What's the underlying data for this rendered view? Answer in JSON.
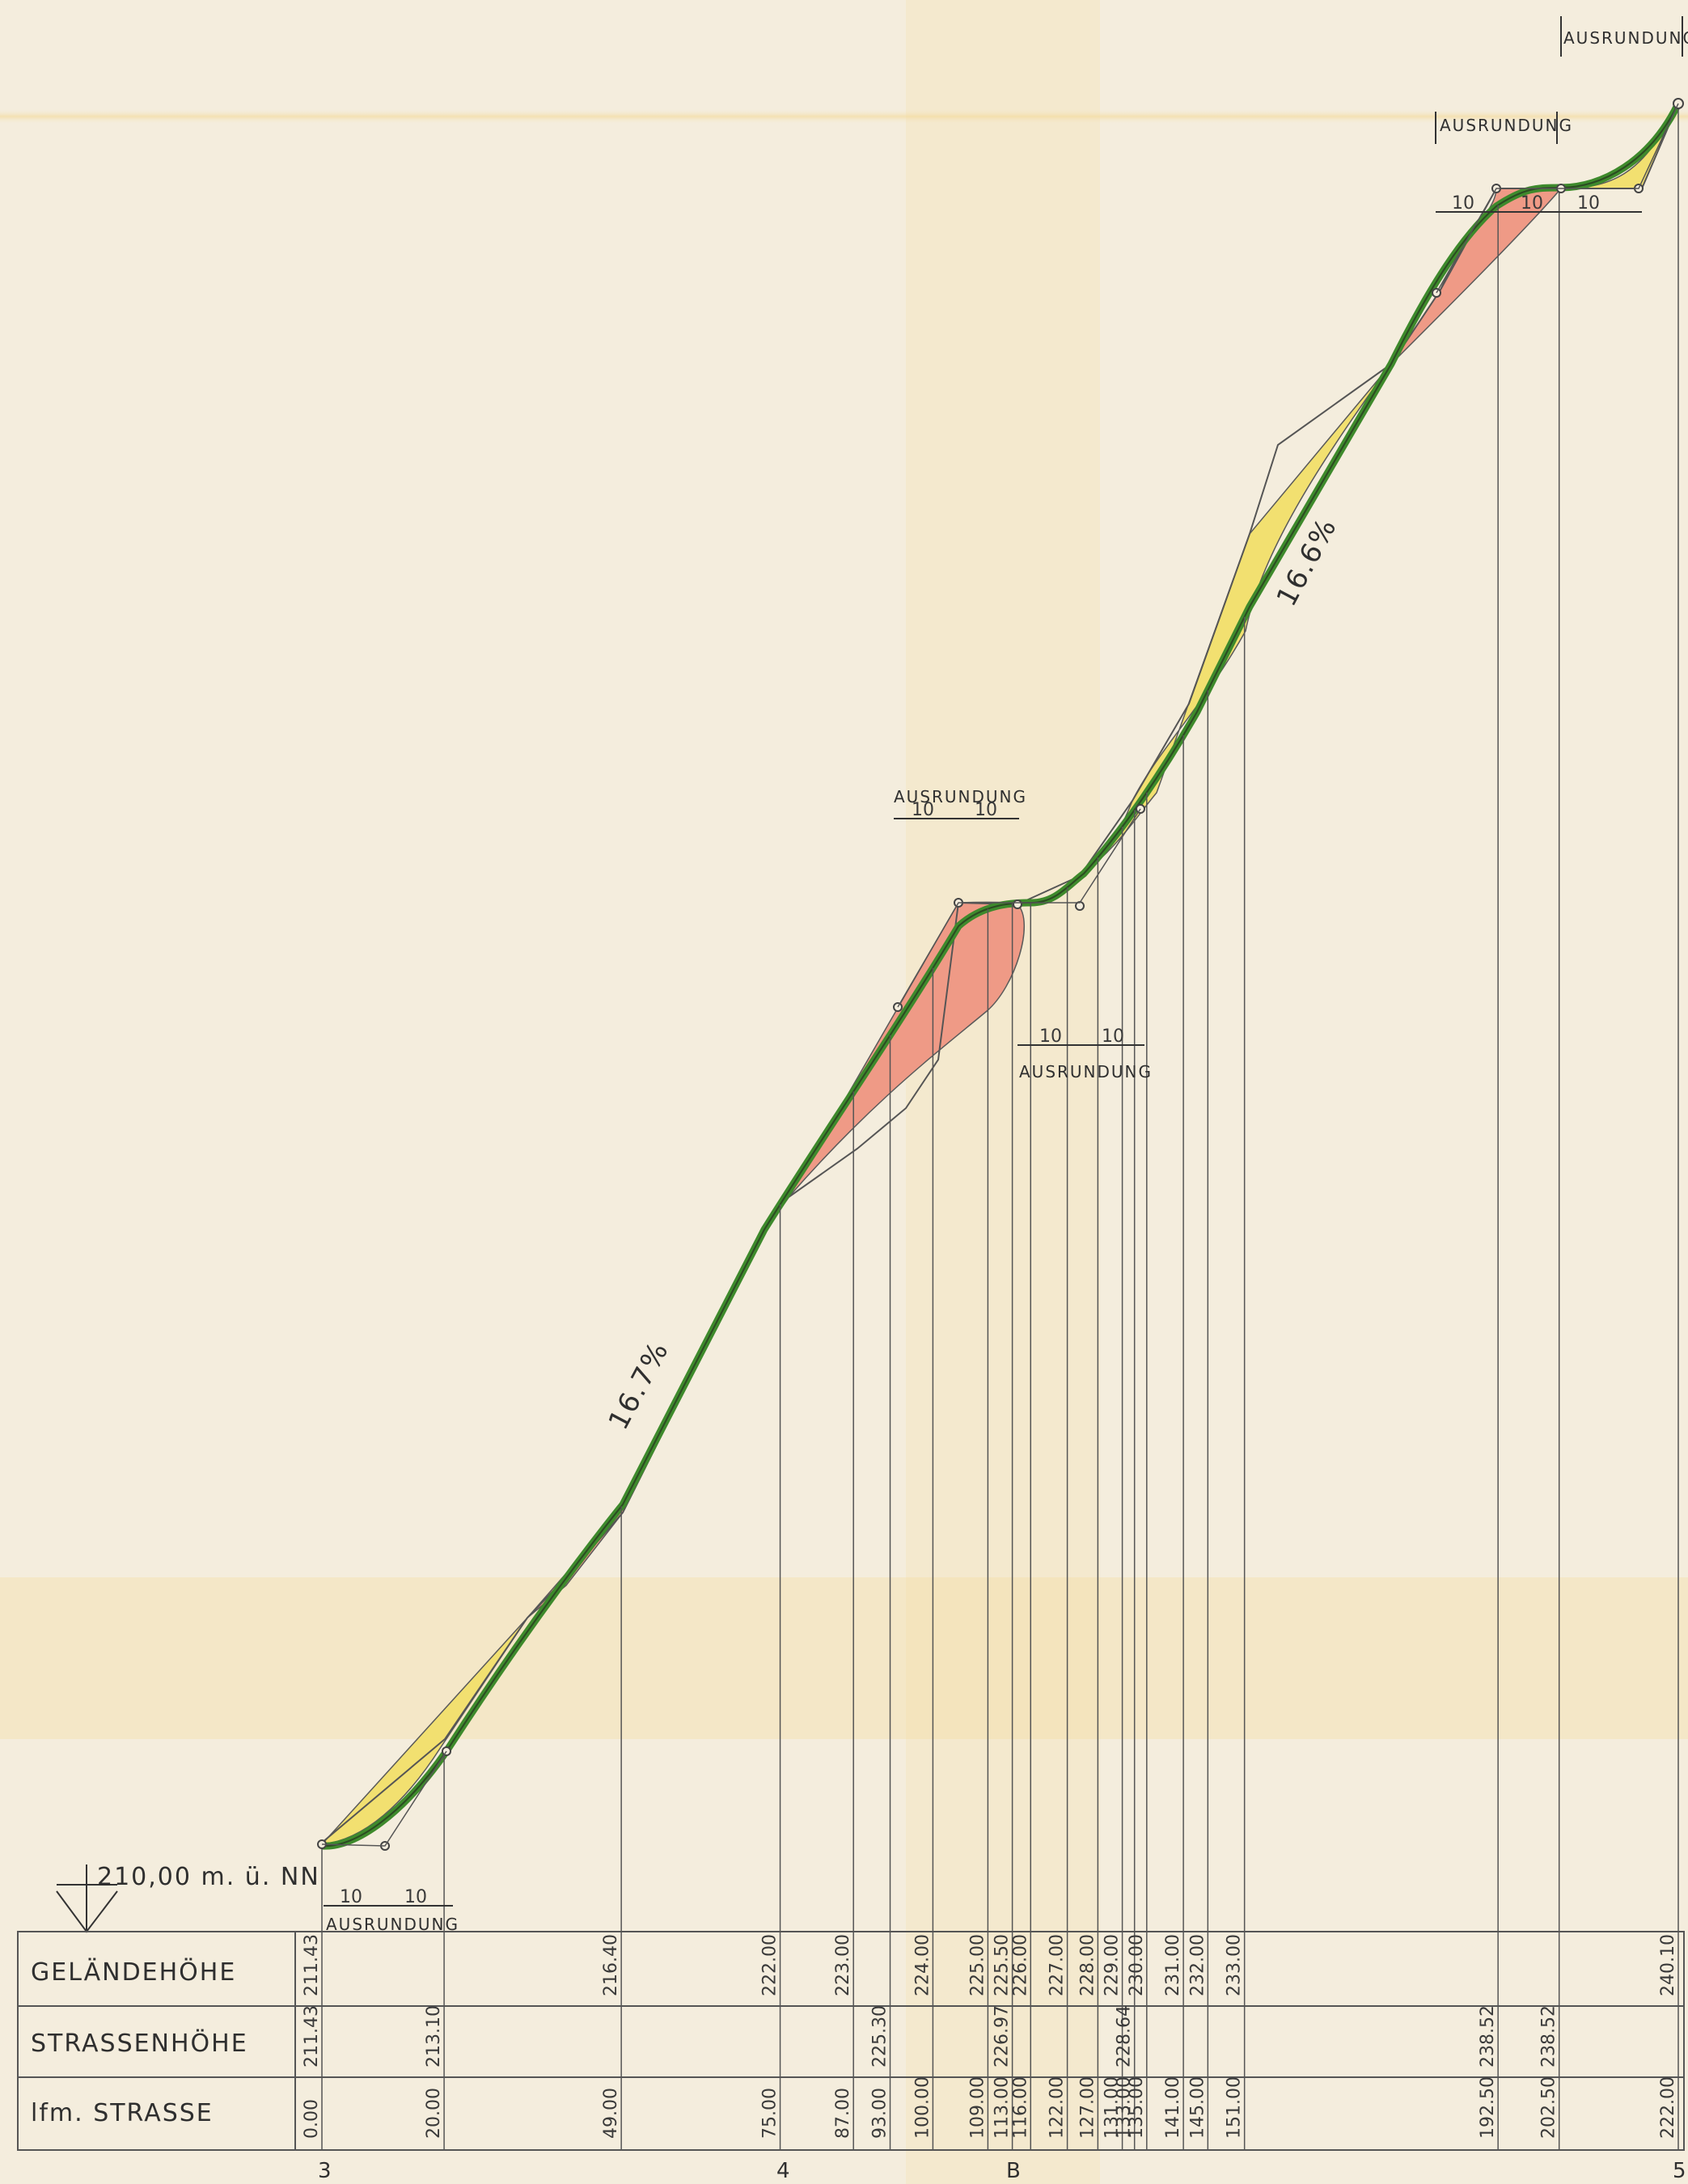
{
  "datum_label": "210,00 m. ü. NN",
  "grade_labels": [
    "16.7%",
    "16.6%"
  ],
  "ausrundung": "AUSRUNDUNG",
  "curve_dims": [
    "10",
    "10"
  ],
  "rows": {
    "gelaende": "GELÄNDEHÖHE",
    "strasse": "STRASSENHÖHE",
    "lfm": "lfm. STRASSE"
  },
  "stations": [
    {
      "lfm": "0.00",
      "terrain": "211.43",
      "road": "211.43"
    },
    {
      "lfm": "20.00",
      "terrain": "",
      "road": "213.10"
    },
    {
      "lfm": "49.00",
      "terrain": "216.40",
      "road": ""
    },
    {
      "lfm": "75.00",
      "terrain": "222.00",
      "road": ""
    },
    {
      "lfm": "87.00",
      "terrain": "223.00",
      "road": ""
    },
    {
      "lfm": "93.00",
      "terrain": "",
      "road": "225.30"
    },
    {
      "lfm": "100.00",
      "terrain": "224.00",
      "road": ""
    },
    {
      "lfm": "109.00",
      "terrain": "225.00",
      "road": ""
    },
    {
      "lfm": "113.00",
      "terrain": "225.50",
      "road": "226.97"
    },
    {
      "lfm": "116.00",
      "terrain": "226.00",
      "road": ""
    },
    {
      "lfm": "122.00",
      "terrain": "227.00",
      "road": ""
    },
    {
      "lfm": "127.00",
      "terrain": "228.00",
      "road": ""
    },
    {
      "lfm": "131.00",
      "terrain": "229.00",
      "road": ""
    },
    {
      "lfm": "133.00",
      "terrain": "",
      "road": "228.64"
    },
    {
      "lfm": "135.00",
      "terrain": "230.00",
      "road": ""
    },
    {
      "lfm": "141.00",
      "terrain": "231.00",
      "road": ""
    },
    {
      "lfm": "145.00",
      "terrain": "232.00",
      "road": ""
    },
    {
      "lfm": "151.00",
      "terrain": "233.00",
      "road": ""
    },
    {
      "lfm": "192.50",
      "terrain": "",
      "road": "238.52"
    },
    {
      "lfm": "202.50",
      "terrain": "",
      "road": "238.52"
    },
    {
      "lfm": "222.00",
      "terrain": "240.10",
      "road": ""
    }
  ],
  "bottom_marks": [
    "3",
    "4",
    "B",
    "5"
  ],
  "colors": {
    "road": "#3e8a2c",
    "fill": "#f2e070",
    "cut": "#ef9a86",
    "paper": "#f4eddd",
    "ink": "#4a4a4a"
  }
}
